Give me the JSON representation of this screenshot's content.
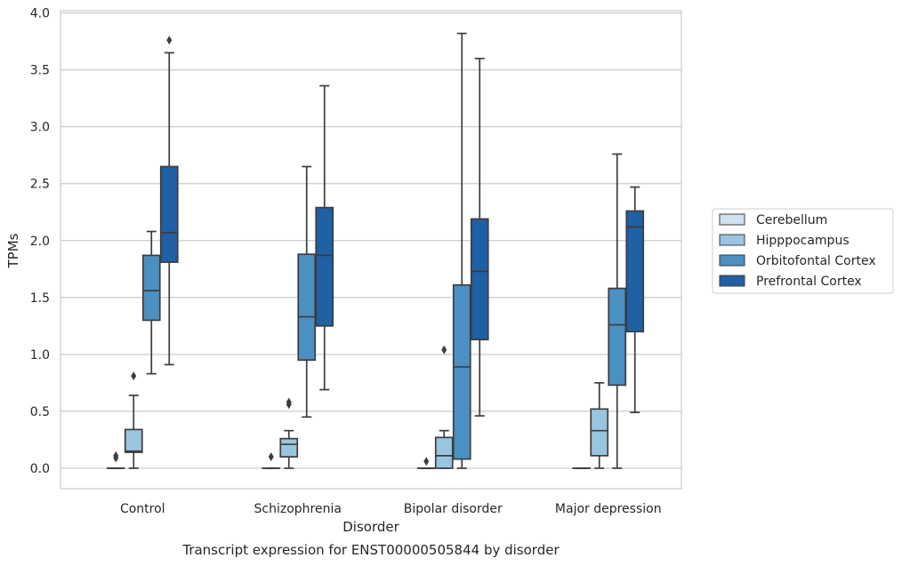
{
  "chart_data": {
    "type": "box",
    "xlabel": "Disorder",
    "ylabel": "TPMs",
    "caption": "Transcript expression for ENST00000505844 by disorder",
    "categories": [
      "Control",
      "Schizophrenia",
      "Bipolar disorder",
      "Major depression"
    ],
    "ylim": [
      -0.18,
      4.02
    ],
    "yticks": [
      "0.0",
      "0.5",
      "1.0",
      "1.5",
      "2.0",
      "2.5",
      "3.0",
      "3.5",
      "4.0"
    ],
    "grid": true,
    "legend_position": "right",
    "series": [
      {
        "name": "Cerebellum",
        "color": "#d0e2f2",
        "boxes": [
          {
            "min": 0.0,
            "q1": 0.0,
            "median": 0.0,
            "q3": 0.0,
            "max": 0.0,
            "outliers": [
              0.09,
              0.11
            ]
          },
          {
            "min": 0.0,
            "q1": 0.0,
            "median": 0.0,
            "q3": 0.0,
            "max": 0.0,
            "outliers": [
              0.1
            ]
          },
          {
            "min": 0.0,
            "q1": 0.0,
            "median": 0.0,
            "q3": 0.0,
            "max": 0.0,
            "outliers": [
              0.06
            ]
          },
          {
            "min": 0.0,
            "q1": 0.0,
            "median": 0.0,
            "q3": 0.0,
            "max": 0.0,
            "outliers": []
          }
        ]
      },
      {
        "name": "Hipppocampus",
        "color": "#9ac5e0",
        "boxes": [
          {
            "min": 0.0,
            "q1": 0.14,
            "median": 0.15,
            "q3": 0.34,
            "max": 0.64,
            "outliers": [
              0.81
            ]
          },
          {
            "min": 0.0,
            "q1": 0.1,
            "median": 0.21,
            "q3": 0.26,
            "max": 0.33,
            "outliers": [
              0.56,
              0.58
            ]
          },
          {
            "min": 0.0,
            "q1": 0.0,
            "median": 0.11,
            "q3": 0.27,
            "max": 0.33,
            "outliers": [
              1.04
            ]
          },
          {
            "min": 0.0,
            "q1": 0.11,
            "median": 0.33,
            "q3": 0.52,
            "max": 0.75,
            "outliers": []
          }
        ]
      },
      {
        "name": "Orbitofontal Cortex",
        "color": "#4a90c2",
        "boxes": [
          {
            "min": 0.83,
            "q1": 1.3,
            "median": 1.56,
            "q3": 1.87,
            "max": 2.08,
            "outliers": []
          },
          {
            "min": 0.45,
            "q1": 0.95,
            "median": 1.33,
            "q3": 1.88,
            "max": 2.65,
            "outliers": []
          },
          {
            "min": 0.0,
            "q1": 0.08,
            "median": 0.89,
            "q3": 1.61,
            "max": 3.82,
            "outliers": []
          },
          {
            "min": 0.0,
            "q1": 0.73,
            "median": 1.26,
            "q3": 1.58,
            "max": 2.76,
            "outliers": []
          }
        ]
      },
      {
        "name": "Prefrontal Cortex",
        "color": "#2060a4",
        "boxes": [
          {
            "min": 0.91,
            "q1": 1.81,
            "median": 2.07,
            "q3": 2.65,
            "max": 3.65,
            "outliers": [
              3.76
            ]
          },
          {
            "min": 0.69,
            "q1": 1.25,
            "median": 1.87,
            "q3": 2.29,
            "max": 3.36,
            "outliers": []
          },
          {
            "min": 0.46,
            "q1": 1.13,
            "median": 1.73,
            "q3": 2.19,
            "max": 3.6,
            "outliers": []
          },
          {
            "min": 0.49,
            "q1": 1.2,
            "median": 2.12,
            "q3": 2.26,
            "max": 2.47,
            "outliers": []
          }
        ]
      }
    ]
  }
}
